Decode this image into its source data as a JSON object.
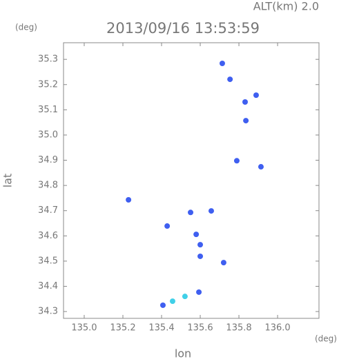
{
  "chart_data": {
    "type": "scatter",
    "title": "2013/09/16 13:53:59",
    "subtitle": "ALT(km) 2.0",
    "x_label": "lon",
    "y_label": "lat",
    "x_unit": "(deg)",
    "y_unit": "(deg)",
    "xlim": [
      134.893,
      136.214
    ],
    "ylim": [
      34.273,
      35.366
    ],
    "xticks": [
      {
        "value": 135,
        "label": "135.0"
      },
      135.2,
      135.4,
      135.6,
      135.8,
      {
        "value": 136,
        "label": "136.0"
      }
    ],
    "yticks": [
      34.3,
      34.4,
      34.5,
      34.6,
      34.7,
      34.8,
      34.9,
      {
        "value": 35,
        "label": "35.0"
      },
      35.1,
      35.2,
      35.3
    ],
    "series": [
      {
        "color": "#3f5ff0",
        "x": [
          135.714,
          135.754,
          135.832,
          135.889,
          135.836,
          135.789,
          135.914,
          135.657,
          135.55,
          135.429,
          135.579,
          135.6,
          135.6,
          135.721,
          135.593,
          135.407,
          135.229
        ],
        "y": [
          35.284,
          35.221,
          35.131,
          35.158,
          35.057,
          34.898,
          34.874,
          34.699,
          34.693,
          34.639,
          34.606,
          34.565,
          34.519,
          34.494,
          34.377,
          34.325,
          34.743
        ]
      },
      {
        "color": "#40d0e8",
        "x": [
          135.521,
          135.457
        ],
        "y": [
          34.36,
          34.341
        ]
      }
    ]
  }
}
